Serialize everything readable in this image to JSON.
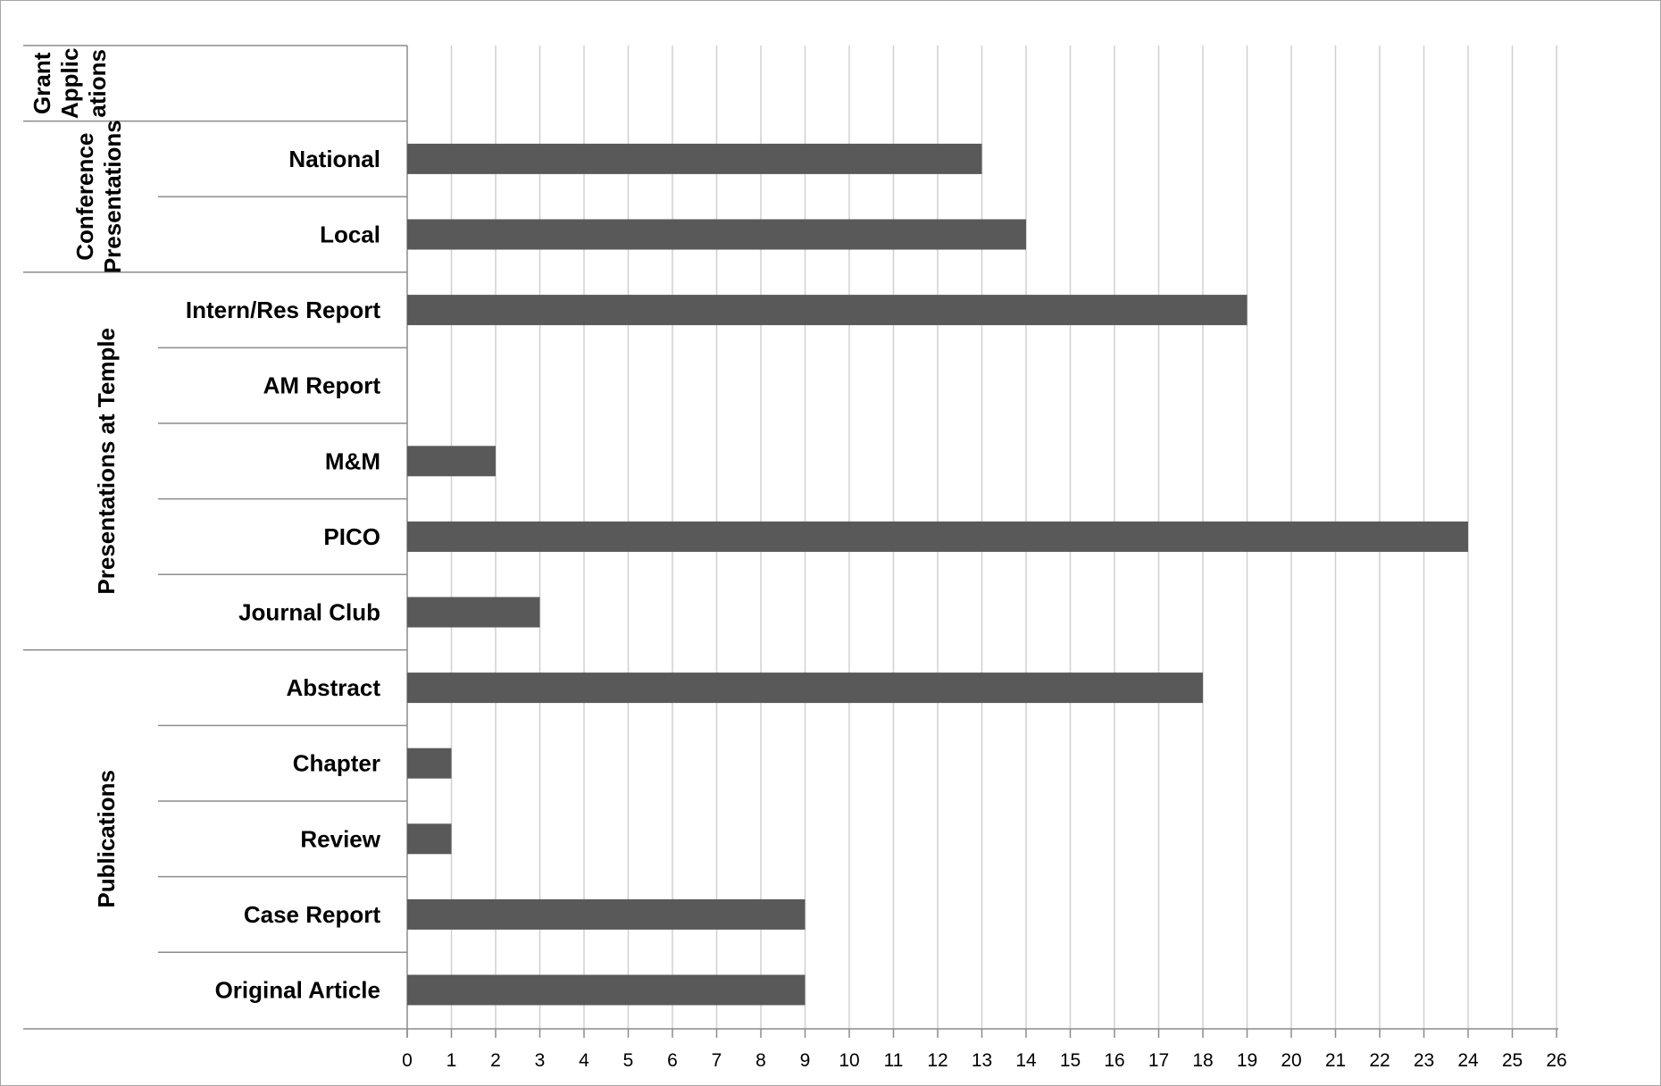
{
  "chart_data": {
    "type": "bar",
    "orientation": "horizontal",
    "title": "",
    "xlabel": "",
    "ylabel": "",
    "xlim": [
      0,
      26
    ],
    "x_ticks": [
      0,
      1,
      2,
      3,
      4,
      5,
      6,
      7,
      8,
      9,
      10,
      11,
      12,
      13,
      14,
      15,
      16,
      17,
      18,
      19,
      20,
      21,
      22,
      23,
      24,
      25,
      26
    ],
    "grid": "vertical",
    "bar_color": "#595959",
    "groups": [
      {
        "name": "Grant Applic ations",
        "lines": [
          "Grant",
          "Applic",
          "ations"
        ],
        "categories": [
          ""
        ],
        "values": [
          null
        ]
      },
      {
        "name": "Conference Presentations",
        "lines": [
          "Conference",
          "Presentations"
        ],
        "categories": [
          "National",
          "Local"
        ],
        "values": [
          13,
          14
        ]
      },
      {
        "name": "Presentations at Temple",
        "lines": [
          "Presentations at Temple"
        ],
        "categories": [
          "Intern/Res Report",
          "AM Report",
          "M&M",
          "PICO",
          "Journal Club"
        ],
        "values": [
          19,
          0,
          2,
          24,
          3
        ]
      },
      {
        "name": "Publications",
        "lines": [
          "Publications"
        ],
        "categories": [
          "Abstract",
          "Chapter",
          "Review",
          "Case Report",
          "Original Article"
        ],
        "values": [
          18,
          1,
          1,
          9,
          9
        ]
      }
    ]
  }
}
